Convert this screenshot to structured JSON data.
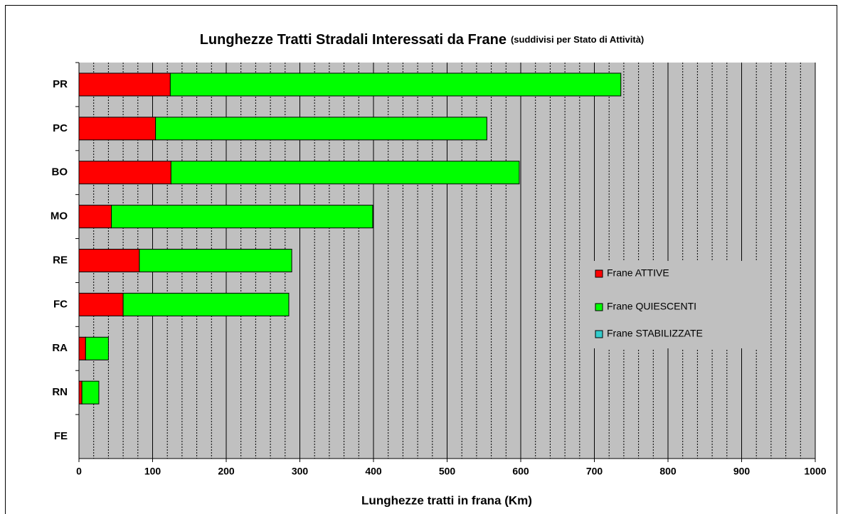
{
  "chart_data": {
    "type": "bar",
    "orientation": "horizontal",
    "stacked": true,
    "title": "Lunghezze Tratti Stradali Interessati da Frane",
    "subtitle": "(suddivisi per Stato di Attività)",
    "x_label": "Lunghezze tratti in frana (Km)",
    "categories": [
      "PR",
      "PC",
      "BO",
      "MO",
      "RE",
      "FC",
      "RA",
      "RN",
      "FE"
    ],
    "series": [
      {
        "name": "Frane ATTIVE",
        "color": "#ff0000",
        "values": [
          124,
          104,
          125,
          44,
          82,
          60,
          9,
          4,
          0
        ]
      },
      {
        "name": "Frane QUIESCENTI",
        "color": "#00ff00",
        "values": [
          612,
          450,
          473,
          355,
          207,
          225,
          31,
          23,
          0
        ]
      },
      {
        "name": "Frane STABILIZZATE",
        "color": "#33cccc",
        "values": [
          0,
          0,
          0,
          0,
          0,
          0,
          0,
          0,
          0
        ]
      }
    ],
    "xlim": [
      0,
      1000
    ],
    "xticks": [
      0,
      100,
      200,
      300,
      400,
      500,
      600,
      700,
      800,
      900,
      1000
    ],
    "x_minor_ticks": [
      20,
      40,
      60,
      80,
      120,
      140,
      160,
      180,
      220,
      240,
      260,
      280,
      320,
      340,
      360,
      380,
      420,
      440,
      460,
      480,
      520,
      540,
      560,
      580,
      620,
      640,
      660,
      680,
      720,
      740,
      760,
      780,
      820,
      840,
      860,
      880,
      920,
      940,
      960,
      980
    ],
    "grid": true,
    "legend": "right"
  }
}
